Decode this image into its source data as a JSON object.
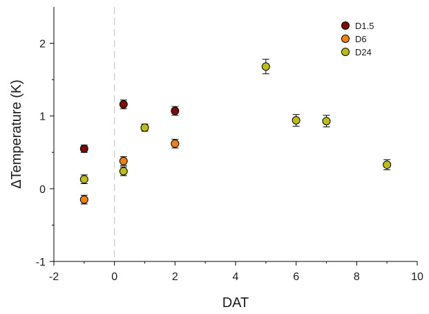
{
  "chart_data": {
    "type": "scatter",
    "xlabel": "DAT",
    "ylabel": "ΔTemperature (K)",
    "xlim": [
      -2,
      10
    ],
    "ylim": [
      -1,
      2.5
    ],
    "xticks": [
      -2,
      0,
      2,
      4,
      6,
      8,
      10
    ],
    "yticks": [
      -1,
      0,
      1,
      2
    ],
    "xtick_labels": [
      "-2",
      "0",
      "2",
      "4",
      "6",
      "8",
      "10"
    ],
    "ytick_labels": [
      "-1",
      "0",
      "1",
      "2"
    ],
    "reference_line": {
      "axis": "x",
      "value": 0,
      "style": "dashed"
    },
    "grid": false,
    "legend_position": "top-right",
    "series": [
      {
        "name": "D1.5",
        "color": "#7b0c0c",
        "points": [
          {
            "x": -1,
            "y": 0.55,
            "err": 0.05
          },
          {
            "x": 0.3,
            "y": 1.16,
            "err": 0.06
          },
          {
            "x": 2,
            "y": 1.07,
            "err": 0.06
          }
        ]
      },
      {
        "name": "D6",
        "color": "#f08018",
        "points": [
          {
            "x": -1,
            "y": -0.15,
            "err": 0.06
          },
          {
            "x": 0.3,
            "y": 0.38,
            "err": 0.06
          },
          {
            "x": 2,
            "y": 0.62,
            "err": 0.06
          }
        ]
      },
      {
        "name": "D24",
        "color": "#bcbc1a",
        "points": [
          {
            "x": -1,
            "y": 0.13,
            "err": 0.06
          },
          {
            "x": 0.3,
            "y": 0.24,
            "err": 0.06
          },
          {
            "x": 1,
            "y": 0.84,
            "err": 0.05
          },
          {
            "x": 5,
            "y": 1.68,
            "err": 0.1
          },
          {
            "x": 6,
            "y": 0.94,
            "err": 0.08
          },
          {
            "x": 7,
            "y": 0.93,
            "err": 0.08
          },
          {
            "x": 9,
            "y": 0.33,
            "err": 0.07
          }
        ]
      }
    ]
  }
}
